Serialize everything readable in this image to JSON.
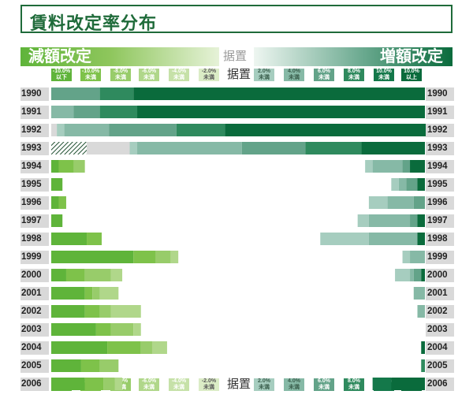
{
  "title": "賃料改定率分布",
  "header": {
    "left_label": "減額改定",
    "right_label": "増額改定",
    "middle_label": "据置"
  },
  "colors": {
    "title": "#1f6b3a",
    "dec": [
      "#5fb43a",
      "#7ec24a",
      "#98cc6a",
      "#b0d78a",
      "#c6e1a8",
      "#dbecc6"
    ],
    "mid": "#d9d9d9",
    "inc": [
      "#c4ddd2",
      "#a6cdbf",
      "#86b9a6",
      "#63a389",
      "#2f8a5e",
      "#14784a",
      "#0a6b3c"
    ]
  },
  "legend": {
    "dec": [
      {
        "top": "-10.0%",
        "bottom": "以下"
      },
      {
        "top": "-10.0%",
        "bottom": "未満"
      },
      {
        "top": "-8.0%",
        "bottom": "未満"
      },
      {
        "top": "-6.0%",
        "bottom": "未満"
      },
      {
        "top": "-4.0%",
        "bottom": "未満"
      },
      {
        "top": "-2.0%",
        "bottom": "未満"
      }
    ],
    "mid": "据置",
    "inc": [
      {
        "top": "2.0%",
        "bottom": "未満"
      },
      {
        "top": "4.0%",
        "bottom": "未満"
      },
      {
        "top": "6.0%",
        "bottom": "未満"
      },
      {
        "top": "8.0%",
        "bottom": "未満"
      },
      {
        "top": "10.0%",
        "bottom": "未満"
      },
      {
        "top": "10.0%",
        "bottom": "以上"
      }
    ]
  },
  "chart_data": {
    "type": "bar",
    "stacked": "diverging",
    "title": "賃料改定率分布",
    "unit": "percent of cases",
    "categories": [
      "1990",
      "1991",
      "1992",
      "1993",
      "1994",
      "1995",
      "1996",
      "1997",
      "1998",
      "1999",
      "2000",
      "2001",
      "2002",
      "2003",
      "2004",
      "2005",
      "2006"
    ],
    "dec_series_names": [
      "-10.0%以下",
      "-10.0%未満",
      "-8.0%未満",
      "-6.0%未満",
      "-4.0%未満",
      "-2.0%未満"
    ],
    "inc_series_names": [
      "2.0%未満",
      "4.0%未満",
      "6.0%未満",
      "8.0%未満",
      "10.0%未満",
      "10.0%以上"
    ],
    "hatched_category": "1993",
    "rows": [
      {
        "year": "1990",
        "dec": [
          0,
          0,
          0,
          0,
          0,
          0
        ],
        "mid": 0,
        "inc": [
          0,
          0,
          13,
          9,
          0,
          78
        ]
      },
      {
        "year": "1991",
        "dec": [
          0,
          0,
          0,
          0,
          0,
          0
        ],
        "mid": 0,
        "inc": [
          0,
          6,
          7,
          10,
          0,
          77
        ]
      },
      {
        "year": "1992",
        "dec": [
          0,
          0,
          0,
          0,
          0,
          0
        ],
        "mid": 1.5,
        "inc": [
          2,
          12,
          18,
          13,
          0,
          55
        ]
      },
      {
        "year": "1993",
        "dec": [
          9.5,
          0,
          0,
          0,
          0,
          0
        ],
        "mid": 12,
        "inc": [
          2,
          28,
          17,
          15,
          0,
          17
        ]
      },
      {
        "year": "1994",
        "dec": [
          2,
          4,
          3,
          0,
          0,
          0
        ],
        "mid": 0,
        "inc": [
          2,
          8,
          2,
          0,
          0,
          4
        ]
      },
      {
        "year": "1995",
        "dec": [
          3,
          0,
          0,
          0,
          0,
          0
        ],
        "mid": 0,
        "inc": [
          2,
          2,
          3,
          0,
          0,
          2
        ]
      },
      {
        "year": "1996",
        "dec": [
          2,
          2,
          0,
          0,
          0,
          0
        ],
        "mid": 0,
        "inc": [
          5,
          7,
          3,
          0,
          0,
          0
        ]
      },
      {
        "year": "1997",
        "dec": [
          3,
          0,
          0,
          0,
          0,
          0
        ],
        "mid": 0,
        "inc": [
          3,
          11,
          2,
          0,
          0,
          2
        ]
      },
      {
        "year": "1998",
        "dec": [
          9.5,
          4,
          0,
          0,
          0,
          0
        ],
        "mid": 0,
        "inc": [
          13,
          13,
          0,
          0,
          0,
          2
        ]
      },
      {
        "year": "1999",
        "dec": [
          22,
          6,
          4,
          2,
          0,
          0
        ],
        "mid": 0,
        "inc": [
          2,
          4,
          0,
          0,
          0,
          0
        ]
      },
      {
        "year": "2000",
        "dec": [
          4,
          5,
          7,
          3,
          0,
          0
        ],
        "mid": 0,
        "inc": [
          4,
          1,
          2,
          0,
          0,
          1
        ]
      },
      {
        "year": "2001",
        "dec": [
          9,
          2,
          2,
          5,
          0,
          0
        ],
        "mid": 0,
        "inc": [
          0,
          3,
          0,
          0,
          0,
          0
        ]
      },
      {
        "year": "2002",
        "dec": [
          9,
          4,
          3,
          8,
          0,
          0
        ],
        "mid": 0,
        "inc": [
          0,
          2,
          0,
          0,
          0,
          0
        ]
      },
      {
        "year": "2003",
        "dec": [
          12,
          4,
          6,
          2,
          0,
          0
        ],
        "mid": 0,
        "inc": [
          0,
          0,
          0,
          0,
          0,
          0
        ]
      },
      {
        "year": "2004",
        "dec": [
          15,
          9,
          3,
          4,
          0,
          0
        ],
        "mid": 0,
        "inc": [
          0,
          0,
          0,
          0,
          0,
          1
        ]
      },
      {
        "year": "2005",
        "dec": [
          8,
          5,
          5,
          0,
          0,
          0
        ],
        "mid": 0,
        "inc": [
          0,
          0,
          0,
          1,
          0,
          0
        ]
      },
      {
        "year": "2006",
        "dec": [
          9,
          5,
          3,
          2,
          0,
          0
        ],
        "mid": 0,
        "inc": [
          0,
          0,
          0,
          0,
          5,
          9
        ]
      }
    ]
  }
}
